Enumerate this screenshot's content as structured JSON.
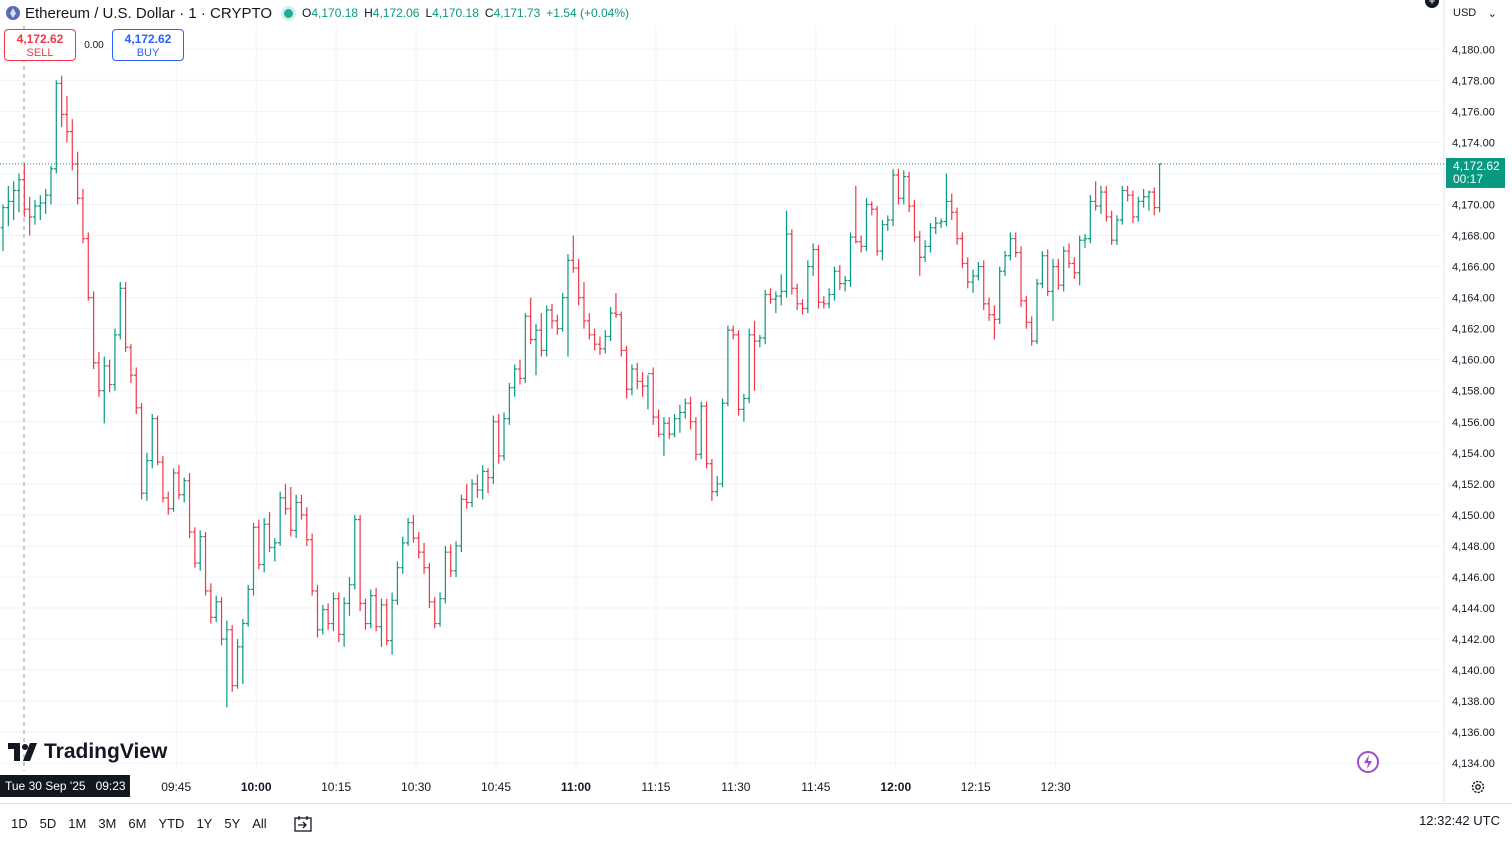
{
  "header": {
    "symbol_title": "Ethereum / U.S. Dollar · 1 · CRYPTO",
    "ohlc": [
      {
        "k": "O",
        "v": "4,170.18"
      },
      {
        "k": "H",
        "v": "4,172.06"
      },
      {
        "k": "L",
        "v": "4,170.18"
      },
      {
        "k": "C",
        "v": "4,171.73"
      }
    ],
    "change": "+1.54 (+0.04%)"
  },
  "trade": {
    "sell_price": "4,172.62",
    "sell_label": "SELL",
    "spread": "0.00",
    "buy_price": "4,172.62",
    "buy_label": "BUY"
  },
  "currency": "USD",
  "last_price": "4,172.62",
  "countdown": "00:17",
  "crosshair_time": "Tue 30 Sep '25   09:23",
  "brand": "TradingView",
  "ranges": [
    "1D",
    "5D",
    "1M",
    "3M",
    "6M",
    "YTD",
    "1Y",
    "5Y",
    "All"
  ],
  "clock": "12:32:42 UTC",
  "colors": {
    "up": "#089981",
    "down": "#f23645",
    "grid": "#f0f3fa",
    "text": "#131722"
  },
  "chart_data": {
    "type": "candlestick",
    "y_axis": {
      "min": 4133.5,
      "max": 4181.5,
      "ticks": [
        "4,180.00",
        "4,178.00",
        "4,176.00",
        "4,174.00",
        "4,172.00",
        "4,170.00",
        "4,168.00",
        "4,166.00",
        "4,164.00",
        "4,162.00",
        "4,160.00",
        "4,158.00",
        "4,156.00",
        "4,154.00",
        "4,152.00",
        "4,150.00",
        "4,148.00",
        "4,146.00",
        "4,144.00",
        "4,142.00",
        "4,140.00",
        "4,138.00",
        "4,136.00",
        "4,134.00"
      ]
    },
    "x_axis": {
      "ticks": [
        {
          "label": "09:45",
          "bold": false
        },
        {
          "label": "10:00",
          "bold": true
        },
        {
          "label": "10:15",
          "bold": false
        },
        {
          "label": "10:30",
          "bold": false
        },
        {
          "label": "10:45",
          "bold": false
        },
        {
          "label": "11:00",
          "bold": true
        },
        {
          "label": "11:15",
          "bold": false
        },
        {
          "label": "11:30",
          "bold": false
        },
        {
          "label": "11:45",
          "bold": false
        },
        {
          "label": "12:00",
          "bold": true
        },
        {
          "label": "12:15",
          "bold": false
        },
        {
          "label": "12:30",
          "bold": false
        }
      ]
    },
    "candles": [
      [
        4168.5,
        4170.0,
        4167.0,
        4169.8
      ],
      [
        4169.8,
        4171.2,
        4168.6,
        4170.2
      ],
      [
        4170.2,
        4171.5,
        4169.0,
        4170.9
      ],
      [
        4170.9,
        4172.0,
        4169.5,
        4171.6
      ],
      [
        4171.6,
        4172.6,
        4169.2,
        4169.7
      ],
      [
        4169.7,
        4170.5,
        4168.0,
        4169.2
      ],
      [
        4169.2,
        4170.3,
        4168.7,
        4169.9
      ],
      [
        4169.9,
        4170.6,
        4169.0,
        4170.1
      ],
      [
        4170.1,
        4171.0,
        4169.4,
        4170.6
      ],
      [
        4170.6,
        4172.5,
        4170.0,
        4172.3
      ],
      [
        4172.3,
        4178.0,
        4172.0,
        4177.8
      ],
      [
        4177.8,
        4178.3,
        4175.0,
        4175.8
      ],
      [
        4175.8,
        4177.0,
        4174.0,
        4174.7
      ],
      [
        4174.7,
        4175.5,
        4172.2,
        4172.6
      ],
      [
        4172.6,
        4173.4,
        4170.0,
        4170.4
      ],
      [
        4170.4,
        4171.0,
        4167.5,
        4167.8
      ],
      [
        4167.8,
        4168.2,
        4163.8,
        4164.0
      ],
      [
        4164.0,
        4164.4,
        4159.4,
        4159.8
      ],
      [
        4159.8,
        4160.5,
        4157.6,
        4158.0
      ],
      [
        4158.0,
        4160.2,
        4155.9,
        4159.6
      ],
      [
        4159.6,
        4160.0,
        4157.9,
        4158.4
      ],
      [
        4158.4,
        4162.0,
        4158.0,
        4161.6
      ],
      [
        4161.6,
        4165.0,
        4161.3,
        4164.6
      ],
      [
        4164.6,
        4165.0,
        4160.5,
        4160.8
      ],
      [
        4160.8,
        4161.0,
        4158.5,
        4159.0
      ],
      [
        4159.0,
        4159.5,
        4156.5,
        4156.9
      ],
      [
        4156.9,
        4157.2,
        4151.0,
        4151.4
      ],
      [
        4151.4,
        4154.0,
        4150.9,
        4153.5
      ],
      [
        4153.5,
        4156.5,
        4153.0,
        4156.2
      ],
      [
        4156.2,
        4156.4,
        4153.2,
        4153.4
      ],
      [
        4153.4,
        4153.8,
        4150.8,
        4151.1
      ],
      [
        4151.1,
        4151.5,
        4150.0,
        4150.4
      ],
      [
        4150.4,
        4153.0,
        4150.2,
        4152.7
      ],
      [
        4152.7,
        4153.2,
        4151.0,
        4151.3
      ],
      [
        4151.3,
        4152.4,
        4150.8,
        4152.2
      ],
      [
        4152.2,
        4152.7,
        4148.5,
        4148.9
      ],
      [
        4148.9,
        4149.2,
        4146.6,
        4146.9
      ],
      [
        4146.9,
        4149.0,
        4146.4,
        4148.6
      ],
      [
        4148.6,
        4148.9,
        4144.8,
        4145.1
      ],
      [
        4145.1,
        4145.6,
        4143.0,
        4143.4
      ],
      [
        4143.4,
        4144.8,
        4143.1,
        4144.4
      ],
      [
        4144.4,
        4144.7,
        4141.6,
        4142.0
      ],
      [
        4142.0,
        4143.2,
        4137.6,
        4142.6
      ],
      [
        4142.6,
        4142.9,
        4138.6,
        4139.0
      ],
      [
        4139.0,
        4142.0,
        4138.8,
        4141.5
      ],
      [
        4141.5,
        4143.3,
        4139.1,
        4143.0
      ],
      [
        4143.0,
        4145.5,
        4142.8,
        4145.2
      ],
      [
        4145.2,
        4149.5,
        4144.8,
        4149.2
      ],
      [
        4149.2,
        4149.7,
        4146.5,
        4146.8
      ],
      [
        4146.8,
        4149.8,
        4146.3,
        4149.4
      ],
      [
        4149.4,
        4150.2,
        4147.6,
        4147.9
      ],
      [
        4147.9,
        4148.5,
        4147.0,
        4148.2
      ],
      [
        4148.2,
        4151.5,
        4148.0,
        4151.1
      ],
      [
        4151.1,
        4152.0,
        4150.0,
        4150.4
      ],
      [
        4150.4,
        4151.8,
        4148.6,
        4149.0
      ],
      [
        4149.0,
        4151.3,
        4148.5,
        4150.8
      ],
      [
        4150.8,
        4151.3,
        4149.7,
        4150.0
      ],
      [
        4150.0,
        4150.5,
        4148.0,
        4148.4
      ],
      [
        4148.4,
        4148.8,
        4144.8,
        4145.1
      ],
      [
        4145.1,
        4145.5,
        4142.1,
        4142.6
      ],
      [
        4142.6,
        4144.2,
        4142.3,
        4143.9
      ],
      [
        4143.9,
        4144.3,
        4142.6,
        4143.0
      ],
      [
        4143.0,
        4145.0,
        4142.5,
        4144.6
      ],
      [
        4144.6,
        4145.0,
        4141.8,
        4142.3
      ],
      [
        4142.3,
        4144.7,
        4141.5,
        4144.3
      ],
      [
        4144.3,
        4146.0,
        4143.5,
        4145.5
      ],
      [
        4145.5,
        4150.0,
        4145.2,
        4149.7
      ],
      [
        4149.7,
        4150.0,
        4143.8,
        4144.3
      ],
      [
        4144.3,
        4144.6,
        4142.6,
        4143.0
      ],
      [
        4143.0,
        4145.2,
        4142.7,
        4144.8
      ],
      [
        4144.8,
        4145.3,
        4142.5,
        4142.8
      ],
      [
        4142.8,
        4144.6,
        4141.5,
        4144.2
      ],
      [
        4144.2,
        4144.6,
        4141.6,
        4141.9
      ],
      [
        4141.9,
        4145.0,
        4141.0,
        4144.5
      ],
      [
        4144.5,
        4147.0,
        4144.2,
        4146.6
      ],
      [
        4146.6,
        4148.6,
        4146.2,
        4148.2
      ],
      [
        4148.2,
        4149.8,
        4148.0,
        4149.5
      ],
      [
        4149.5,
        4150.0,
        4148.2,
        4148.5
      ],
      [
        4148.5,
        4148.9,
        4147.2,
        4147.6
      ],
      [
        4147.6,
        4148.2,
        4146.2,
        4146.6
      ],
      [
        4146.6,
        4146.9,
        4144.0,
        4144.4
      ],
      [
        4144.4,
        4144.7,
        4142.7,
        4143.0
      ],
      [
        4143.0,
        4145.0,
        4142.8,
        4144.6
      ],
      [
        4144.6,
        4148.0,
        4144.3,
        4147.6
      ],
      [
        4147.6,
        4148.1,
        4146.0,
        4146.4
      ],
      [
        4146.4,
        4148.3,
        4146.0,
        4148.0
      ],
      [
        4148.0,
        4151.3,
        4147.6,
        4151.0
      ],
      [
        4151.0,
        4152.0,
        4150.4,
        4150.8
      ],
      [
        4150.8,
        4152.3,
        4150.5,
        4152.0
      ],
      [
        4152.0,
        4152.6,
        4151.1,
        4151.6
      ],
      [
        4151.6,
        4153.2,
        4151.0,
        4152.8
      ],
      [
        4152.8,
        4153.0,
        4151.4,
        4152.4
      ],
      [
        4152.4,
        4156.4,
        4152.0,
        4156.0
      ],
      [
        4156.0,
        4156.5,
        4153.3,
        4153.8
      ],
      [
        4153.8,
        4156.6,
        4153.5,
        4156.2
      ],
      [
        4156.2,
        4158.5,
        4155.8,
        4158.2
      ],
      [
        4158.2,
        4159.7,
        4157.6,
        4159.4
      ],
      [
        4159.4,
        4160.0,
        4158.4,
        4158.8
      ],
      [
        4158.8,
        4163.0,
        4158.5,
        4162.8
      ],
      [
        4162.8,
        4164.0,
        4161.0,
        4161.3
      ],
      [
        4161.3,
        4162.3,
        4159.0,
        4161.9
      ],
      [
        4161.9,
        4163.0,
        4160.2,
        4160.6
      ],
      [
        4160.6,
        4163.5,
        4160.2,
        4163.2
      ],
      [
        4163.2,
        4163.6,
        4162.0,
        4162.5
      ],
      [
        4162.5,
        4162.9,
        4161.6,
        4162.0
      ],
      [
        4162.0,
        4164.3,
        4161.8,
        4164.0
      ],
      [
        4164.0,
        4166.8,
        4160.2,
        4166.4
      ],
      [
        4166.4,
        4168.0,
        4165.6,
        4165.9
      ],
      [
        4165.9,
        4166.5,
        4163.5,
        4164.0
      ],
      [
        4164.0,
        4165.0,
        4162.0,
        4162.5
      ],
      [
        4162.5,
        4163.0,
        4161.3,
        4161.6
      ],
      [
        4161.6,
        4162.0,
        4160.6,
        4161.0
      ],
      [
        4161.0,
        4161.5,
        4160.3,
        4160.7
      ],
      [
        4160.7,
        4161.9,
        4160.4,
        4161.5
      ],
      [
        4161.5,
        4163.4,
        4161.2,
        4163.0
      ],
      [
        4163.0,
        4164.3,
        4162.7,
        4162.9
      ],
      [
        4162.9,
        4163.1,
        4160.2,
        4160.6
      ],
      [
        4160.6,
        4160.9,
        4157.5,
        4158.1
      ],
      [
        4158.1,
        4159.7,
        4157.7,
        4159.4
      ],
      [
        4159.4,
        4159.8,
        4158.1,
        4158.6
      ],
      [
        4158.6,
        4159.2,
        4157.6,
        4158.3
      ],
      [
        4158.3,
        4159.0,
        4156.8,
        4159.1
      ],
      [
        4159.1,
        4159.5,
        4155.8,
        4156.3
      ],
      [
        4156.3,
        4156.8,
        4155.0,
        4155.2
      ],
      [
        4155.2,
        4156.3,
        4153.8,
        4155.9
      ],
      [
        4155.9,
        4156.3,
        4154.9,
        4155.2
      ],
      [
        4155.2,
        4156.5,
        4155.0,
        4156.2
      ],
      [
        4156.2,
        4157.1,
        4155.3,
        4156.6
      ],
      [
        4156.6,
        4157.5,
        4156.2,
        4157.2
      ],
      [
        4157.2,
        4157.6,
        4155.5,
        4156.0
      ],
      [
        4156.0,
        4156.3,
        4153.5,
        4153.9
      ],
      [
        4153.9,
        4157.3,
        4153.6,
        4157.0
      ],
      [
        4157.0,
        4157.3,
        4153.0,
        4153.3
      ],
      [
        4153.3,
        4153.6,
        4150.9,
        4151.5
      ],
      [
        4151.5,
        4152.5,
        4151.2,
        4152.0
      ],
      [
        4152.0,
        4157.5,
        4151.8,
        4157.2
      ],
      [
        4157.2,
        4162.2,
        4157.0,
        4161.9
      ],
      [
        4161.9,
        4162.2,
        4161.3,
        4161.6
      ],
      [
        4161.6,
        4161.9,
        4156.4,
        4156.8
      ],
      [
        4156.8,
        4157.8,
        4156.0,
        4157.5
      ],
      [
        4157.5,
        4162.0,
        4157.2,
        4161.6
      ],
      [
        4161.6,
        4162.5,
        4158.0,
        4161.2
      ],
      [
        4161.2,
        4161.6,
        4160.8,
        4161.4
      ],
      [
        4161.4,
        4164.5,
        4161.0,
        4164.2
      ],
      [
        4164.2,
        4164.6,
        4163.6,
        4163.9
      ],
      [
        4163.9,
        4164.4,
        4163.0,
        4164.1
      ],
      [
        4164.1,
        4165.5,
        4163.5,
        4164.4
      ],
      [
        4164.4,
        4169.6,
        4164.0,
        4168.1
      ],
      [
        4168.1,
        4168.4,
        4164.2,
        4164.6
      ],
      [
        4164.6,
        4164.9,
        4163.2,
        4163.6
      ],
      [
        4163.6,
        4163.9,
        4162.9,
        4163.3
      ],
      [
        4163.3,
        4166.4,
        4163.0,
        4166.0
      ],
      [
        4166.0,
        4167.5,
        4165.4,
        4167.1
      ],
      [
        4167.1,
        4167.4,
        4163.3,
        4163.7
      ],
      [
        4163.7,
        4164.1,
        4163.3,
        4163.6
      ],
      [
        4163.6,
        4164.6,
        4163.3,
        4164.2
      ],
      [
        4164.2,
        4166.0,
        4163.8,
        4165.7
      ],
      [
        4165.7,
        4166.1,
        4164.5,
        4164.9
      ],
      [
        4164.9,
        4165.4,
        4164.4,
        4165.1
      ],
      [
        4165.1,
        4168.2,
        4164.7,
        4167.9
      ],
      [
        4167.9,
        4171.2,
        4167.5,
        4167.6
      ],
      [
        4167.6,
        4168.0,
        4166.9,
        4167.3
      ],
      [
        4167.3,
        4170.4,
        4167.0,
        4170.0
      ],
      [
        4170.0,
        4170.2,
        4169.3,
        4169.7
      ],
      [
        4169.7,
        4169.9,
        4166.7,
        4167.0
      ],
      [
        4167.0,
        4169.0,
        4166.4,
        4168.7
      ],
      [
        4168.7,
        4169.3,
        4168.3,
        4169.0
      ],
      [
        4169.0,
        4172.3,
        4168.6,
        4171.9
      ],
      [
        4171.9,
        4172.3,
        4170.0,
        4170.4
      ],
      [
        4170.4,
        4172.2,
        4170.0,
        4171.8
      ],
      [
        4171.8,
        4172.1,
        4169.5,
        4169.9
      ],
      [
        4169.9,
        4170.3,
        4167.6,
        4167.9
      ],
      [
        4167.9,
        4168.3,
        4165.4,
        4166.6
      ],
      [
        4166.6,
        4167.7,
        4166.3,
        4167.3
      ],
      [
        4167.3,
        4168.8,
        4166.9,
        4168.5
      ],
      [
        4168.5,
        4169.2,
        4168.1,
        4168.8
      ],
      [
        4168.8,
        4169.1,
        4168.5,
        4168.9
      ],
      [
        4168.9,
        4172.0,
        4168.6,
        4170.2
      ],
      [
        4170.2,
        4170.7,
        4169.0,
        4169.5
      ],
      [
        4169.5,
        4169.8,
        4167.4,
        4167.8
      ],
      [
        4167.8,
        4168.2,
        4165.9,
        4166.2
      ],
      [
        4166.2,
        4166.6,
        4164.6,
        4165.0
      ],
      [
        4165.0,
        4165.8,
        4164.3,
        4165.4
      ],
      [
        4165.4,
        4166.3,
        4165.1,
        4166.0
      ],
      [
        4166.0,
        4166.4,
        4163.2,
        4163.6
      ],
      [
        4163.6,
        4164.0,
        4162.5,
        4162.9
      ],
      [
        4162.9,
        4163.5,
        4161.3,
        4162.6
      ],
      [
        4162.6,
        4166.0,
        4162.3,
        4165.7
      ],
      [
        4165.7,
        4167.0,
        4165.4,
        4166.7
      ],
      [
        4166.7,
        4168.2,
        4166.4,
        4167.8
      ],
      [
        4167.8,
        4168.2,
        4166.6,
        4166.9
      ],
      [
        4166.9,
        4167.3,
        4163.4,
        4163.8
      ],
      [
        4163.8,
        4164.1,
        4162.0,
        4162.4
      ],
      [
        4162.4,
        4162.8,
        4160.9,
        4161.2
      ],
      [
        4161.2,
        4165.2,
        4161.0,
        4164.9
      ],
      [
        4164.9,
        4167.0,
        4164.6,
        4166.7
      ],
      [
        4166.7,
        4167.1,
        4164.1,
        4164.4
      ],
      [
        4164.4,
        4166.5,
        4162.5,
        4166.0
      ],
      [
        4166.0,
        4166.5,
        4164.5,
        4164.8
      ],
      [
        4164.8,
        4167.3,
        4164.4,
        4167.0
      ],
      [
        4167.0,
        4167.5,
        4165.9,
        4166.2
      ],
      [
        4166.2,
        4166.6,
        4165.2,
        4165.6
      ],
      [
        4165.6,
        4168.0,
        4164.8,
        4167.7
      ],
      [
        4167.7,
        4168.1,
        4167.2,
        4167.8
      ],
      [
        4167.8,
        4170.6,
        4167.5,
        4170.2
      ],
      [
        4170.2,
        4171.5,
        4169.6,
        4169.9
      ],
      [
        4169.9,
        4171.2,
        4169.4,
        4170.8
      ],
      [
        4170.8,
        4171.2,
        4168.9,
        4169.2
      ],
      [
        4169.2,
        4169.6,
        4167.4,
        4167.7
      ],
      [
        4167.7,
        4169.3,
        4167.4,
        4169.0
      ],
      [
        4169.0,
        4171.2,
        4168.7,
        4170.9
      ],
      [
        4170.9,
        4171.2,
        4170.2,
        4170.6
      ],
      [
        4170.6,
        4170.9,
        4168.8,
        4169.2
      ],
      [
        4169.2,
        4170.5,
        4168.9,
        4170.2
      ],
      [
        4170.2,
        4171.0,
        4169.8,
        4170.5
      ],
      [
        4170.5,
        4170.9,
        4169.6,
        4170.8
      ],
      [
        4170.8,
        4171.1,
        4169.3,
        4169.8
      ],
      [
        4169.8,
        4172.62,
        4169.5,
        4172.62
      ]
    ]
  }
}
